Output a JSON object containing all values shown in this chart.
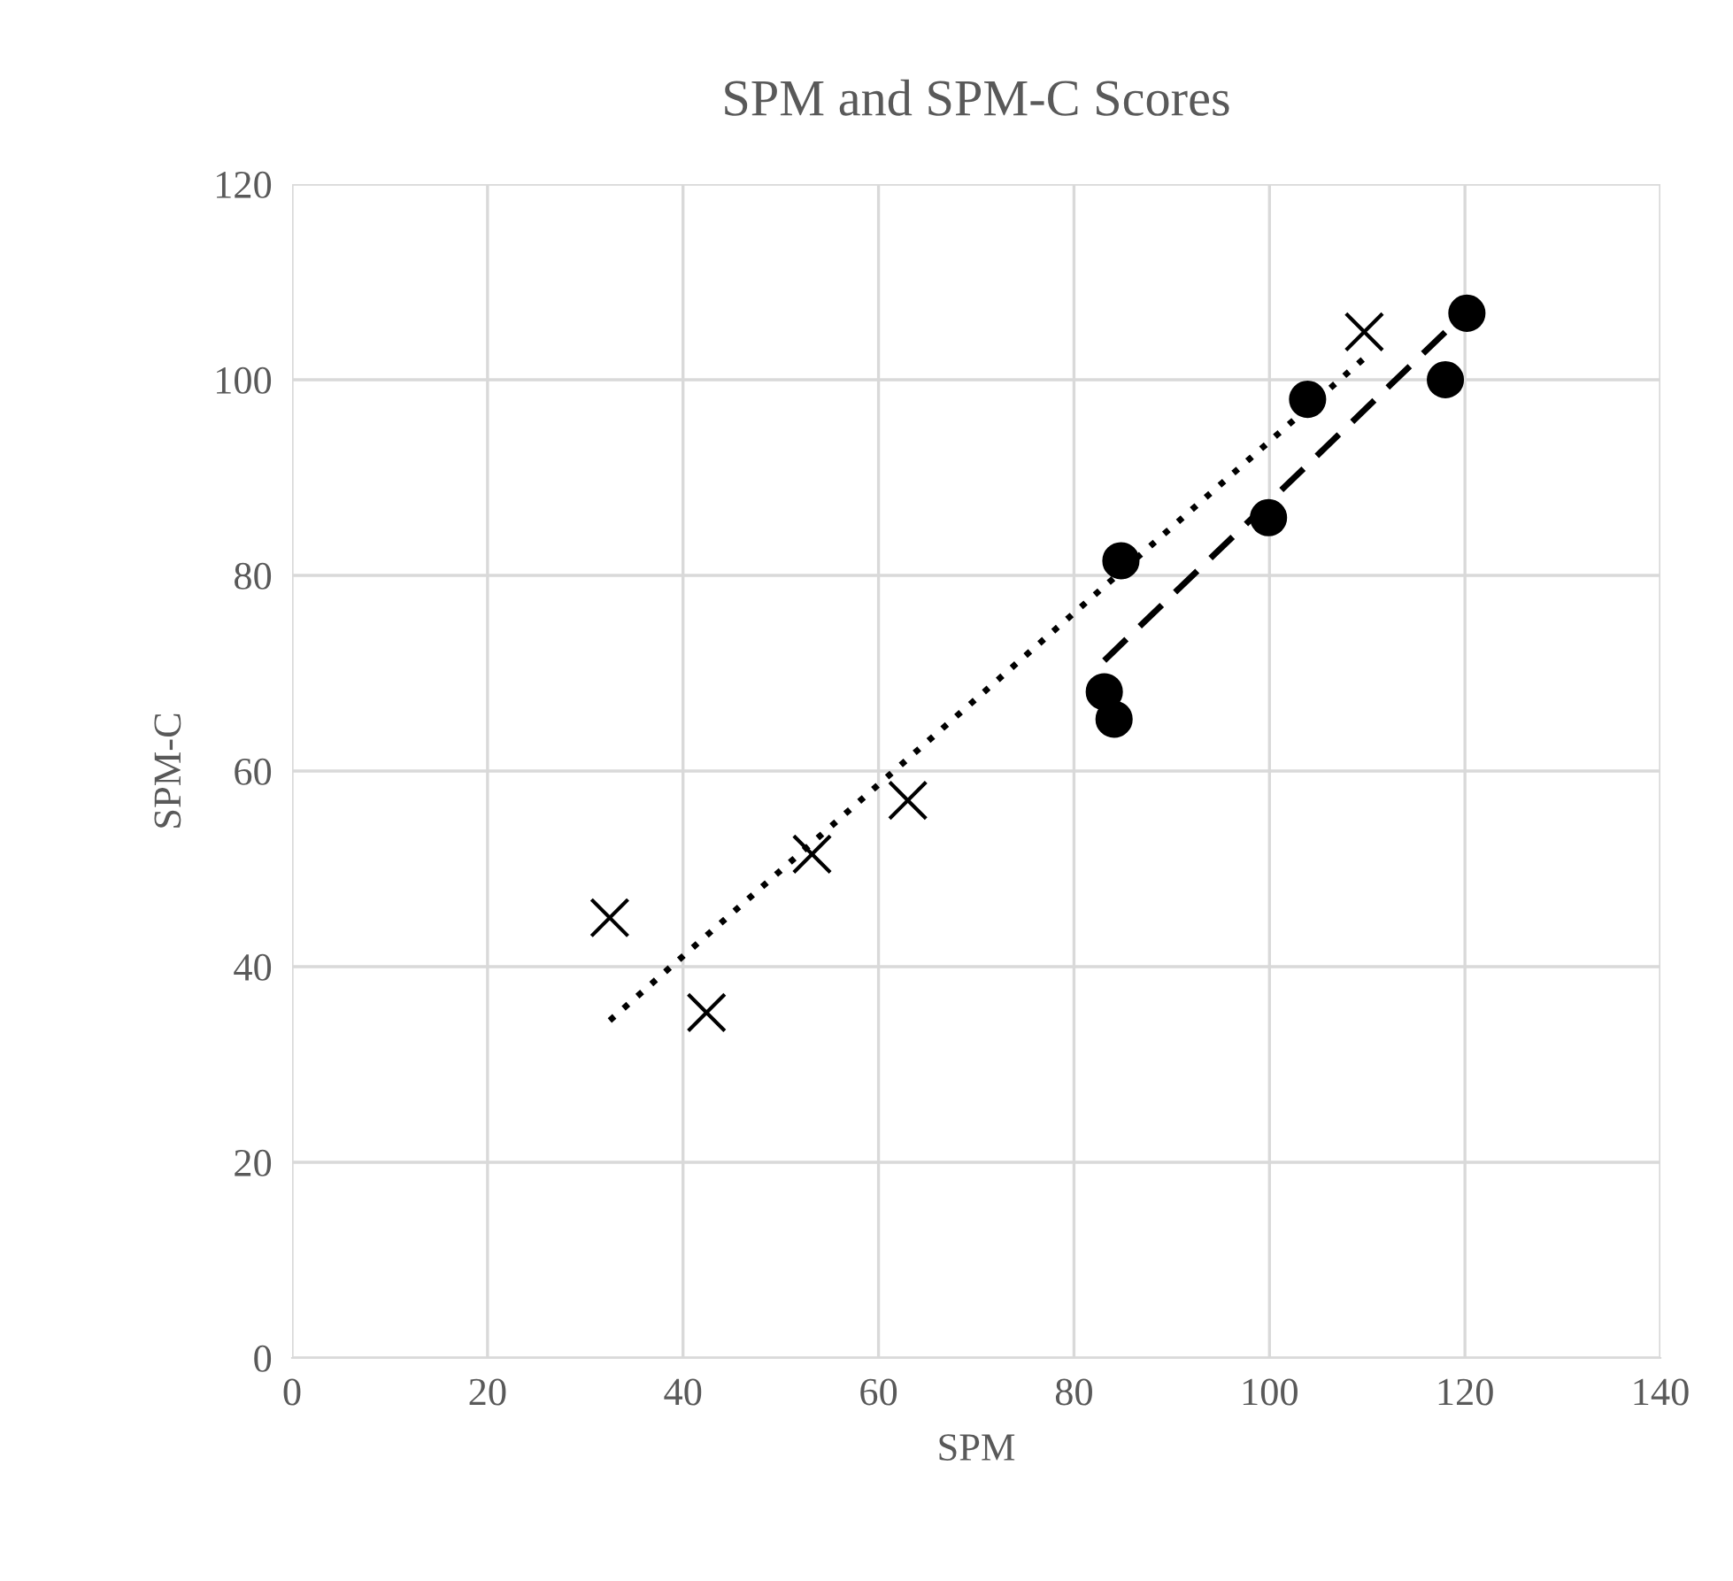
{
  "chart_data": {
    "type": "scatter",
    "title": "SPM and SPM-C Scores",
    "xlabel": "SPM",
    "ylabel": "SPM-C",
    "xlim": [
      0,
      140
    ],
    "xticks": [
      0,
      20,
      40,
      60,
      80,
      100,
      120,
      140
    ],
    "ylim": [
      0,
      120
    ],
    "yticks": [
      0,
      20,
      40,
      60,
      80,
      100,
      120
    ],
    "grid": true,
    "legend": false,
    "series": [
      {
        "marker": "cross",
        "color": "#000000",
        "x": [
          32.5,
          42.4,
          53.2,
          63.0,
          109.7
        ],
        "values": [
          45.0,
          35.3,
          51.5,
          57.0,
          104.9
        ]
      },
      {
        "marker": "circle",
        "color": "#000000",
        "x": [
          83.1,
          84.1,
          84.8,
          99.9,
          103.9,
          118.0,
          120.2
        ],
        "values": [
          68.1,
          65.3,
          81.5,
          85.9,
          98.0,
          100.0,
          106.8
        ]
      },
      {
        "type": "line",
        "marker": "none",
        "line_style": "dotted",
        "color": "#000000",
        "x": [
          32.5,
          109.7
        ],
        "values": [
          34.5,
          102.2
        ]
      },
      {
        "type": "line",
        "marker": "none",
        "line_style": "dashed",
        "color": "#000000",
        "x": [
          83.1,
          120.2
        ],
        "values": [
          71.3,
          107.0
        ]
      }
    ]
  }
}
